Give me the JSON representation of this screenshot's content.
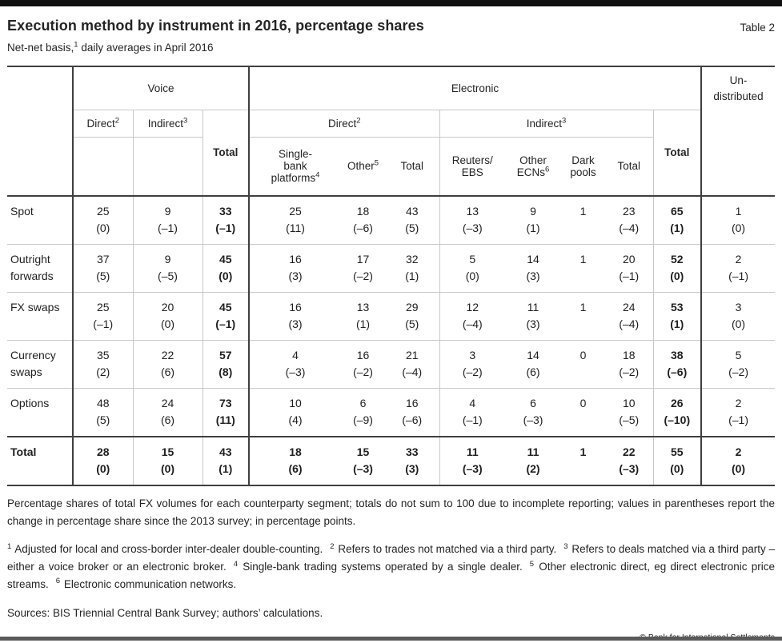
{
  "page": {
    "title": "Execution method by instrument in 2016, percentage shares",
    "table_label": "Table 2",
    "subtitle": {
      "pre": "Net-net basis,",
      "sup": "1",
      "post": " daily averages in April 2016"
    },
    "note": "Percentage shares of total FX volumes for each counterparty segment; totals do not sum to 100 due to incomplete reporting; values in parentheses report the change in percentage share since the 2013 survey; in percentage points.",
    "footnotes": [
      {
        "sup": "1",
        "text": "Adjusted for local and cross-border inter-dealer double-counting."
      },
      {
        "sup": "2",
        "text": "Refers to trades not matched via a third party."
      },
      {
        "sup": "3",
        "text": "Refers to deals matched via a third party – either a voice broker or an electronic broker."
      },
      {
        "sup": "4",
        "text": "Single-bank trading systems operated by a single dealer."
      },
      {
        "sup": "5",
        "text": "Other electronic direct, eg direct electronic price streams."
      },
      {
        "sup": "6",
        "text": "Electronic communication networks."
      }
    ],
    "sources": "Sources: BIS Triennial Central Bank Survey; authors’ calculations.",
    "copyright": "© Bank for International Settlements"
  },
  "colors": {
    "dark_rule": "#3f3f3f",
    "light_rule": "#c8c8c8",
    "top_bar": "#101010",
    "bottom_bar": "#5a5a5a"
  },
  "table": {
    "header": {
      "voice": "Voice",
      "electronic": "Electronic",
      "undistributed": "Un-\ndistributed",
      "voice_direct": {
        "text": "Direct",
        "sup": "2"
      },
      "voice_indirect": {
        "text": "Indirect",
        "sup": "3"
      },
      "voice_total": "Total",
      "elec_direct": {
        "text": "Direct",
        "sup": "2"
      },
      "elec_indirect": {
        "text": "Indirect",
        "sup": "3"
      },
      "single_bank": {
        "text": "Single-\nbank\nplatforms",
        "sup": "4"
      },
      "other_direct": {
        "text": "Other",
        "sup": "5"
      },
      "direct_total": "Total",
      "reuters_ebs": "Reuters/\nEBS",
      "other_ecns": {
        "text": "Other\nECNs",
        "sup": "6"
      },
      "dark_pools": "Dark\npools",
      "indirect_total": "Total",
      "elec_total": "Total"
    },
    "rows": [
      {
        "label": "Spot",
        "bold": false,
        "cells": [
          {
            "v": "25",
            "c": "(0)"
          },
          {
            "v": "9",
            "c": "(–1)"
          },
          {
            "v": "33",
            "c": "(–1)"
          },
          {
            "v": "25",
            "c": "(11)"
          },
          {
            "v": "18",
            "c": "(–6)"
          },
          {
            "v": "43",
            "c": "(5)"
          },
          {
            "v": "13",
            "c": "(–3)"
          },
          {
            "v": "9",
            "c": "(1)"
          },
          {
            "v": "1",
            "c": ""
          },
          {
            "v": "23",
            "c": "(–4)"
          },
          {
            "v": "65",
            "c": "(1)"
          },
          {
            "v": "1",
            "c": "(0)"
          }
        ]
      },
      {
        "label": "Outright forwards",
        "bold": false,
        "cells": [
          {
            "v": "37",
            "c": "(5)"
          },
          {
            "v": "9",
            "c": "(–5)"
          },
          {
            "v": "45",
            "c": "(0)"
          },
          {
            "v": "16",
            "c": "(3)"
          },
          {
            "v": "17",
            "c": "(–2)"
          },
          {
            "v": "32",
            "c": "(1)"
          },
          {
            "v": "5",
            "c": "(0)"
          },
          {
            "v": "14",
            "c": "(3)"
          },
          {
            "v": "1",
            "c": ""
          },
          {
            "v": "20",
            "c": "(–1)"
          },
          {
            "v": "52",
            "c": "(0)"
          },
          {
            "v": "2",
            "c": "(–1)"
          }
        ]
      },
      {
        "label": "FX swaps",
        "bold": false,
        "cells": [
          {
            "v": "25",
            "c": "(–1)"
          },
          {
            "v": "20",
            "c": "(0)"
          },
          {
            "v": "45",
            "c": "(–1)"
          },
          {
            "v": "16",
            "c": "(3)"
          },
          {
            "v": "13",
            "c": "(1)"
          },
          {
            "v": "29",
            "c": "(5)"
          },
          {
            "v": "12",
            "c": "(–4)"
          },
          {
            "v": "11",
            "c": "(3)"
          },
          {
            "v": "1",
            "c": ""
          },
          {
            "v": "24",
            "c": "(–4)"
          },
          {
            "v": "53",
            "c": "(1)"
          },
          {
            "v": "3",
            "c": "(0)"
          }
        ]
      },
      {
        "label": "Currency swaps",
        "bold": false,
        "cells": [
          {
            "v": "35",
            "c": "(2)"
          },
          {
            "v": "22",
            "c": "(6)"
          },
          {
            "v": "57",
            "c": "(8)"
          },
          {
            "v": "4",
            "c": "(–3)"
          },
          {
            "v": "16",
            "c": "(–2)"
          },
          {
            "v": "21",
            "c": "(–4)"
          },
          {
            "v": "3",
            "c": "(–2)"
          },
          {
            "v": "14",
            "c": "(6)"
          },
          {
            "v": "0",
            "c": ""
          },
          {
            "v": "18",
            "c": "(–2)"
          },
          {
            "v": "38",
            "c": "(–6)"
          },
          {
            "v": "5",
            "c": "(–2)"
          }
        ]
      },
      {
        "label": "Options",
        "bold": false,
        "cells": [
          {
            "v": "48",
            "c": "(5)"
          },
          {
            "v": "24",
            "c": "(6)"
          },
          {
            "v": "73",
            "c": "(11)"
          },
          {
            "v": "10",
            "c": "(4)"
          },
          {
            "v": "6",
            "c": "(–9)"
          },
          {
            "v": "16",
            "c": "(–6)"
          },
          {
            "v": "4",
            "c": "(–1)"
          },
          {
            "v": "6",
            "c": "(–3)"
          },
          {
            "v": "0",
            "c": ""
          },
          {
            "v": "10",
            "c": "(–5)"
          },
          {
            "v": "26",
            "c": "(–10)"
          },
          {
            "v": "2",
            "c": "(–1)"
          }
        ]
      },
      {
        "label": "Total",
        "bold": true,
        "cells": [
          {
            "v": "28",
            "c": "(0)"
          },
          {
            "v": "15",
            "c": "(0)"
          },
          {
            "v": "43",
            "c": "(1)"
          },
          {
            "v": "18",
            "c": "(6)"
          },
          {
            "v": "15",
            "c": "(–3)"
          },
          {
            "v": "33",
            "c": "(3)"
          },
          {
            "v": "11",
            "c": "(–3)"
          },
          {
            "v": "11",
            "c": "(2)"
          },
          {
            "v": "1",
            "c": ""
          },
          {
            "v": "22",
            "c": "(–3)"
          },
          {
            "v": "55",
            "c": "(0)"
          },
          {
            "v": "2",
            "c": "(0)"
          }
        ]
      }
    ]
  }
}
